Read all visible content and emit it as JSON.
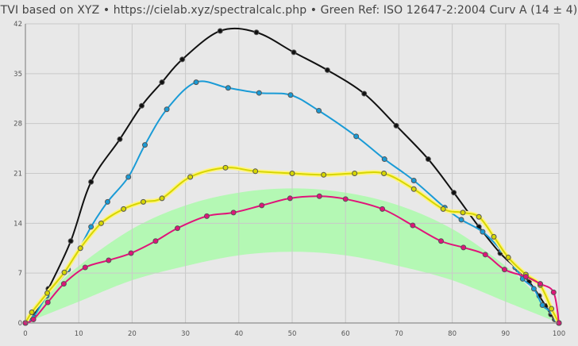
{
  "title": "TVI based on XYZ  •  https://cielab.xyz/spectralcalc.php  •  Green Ref: ISO 12647-2:2004 Curv A (14 ± 4)",
  "chart_data": {
    "type": "line",
    "title": "TVI based on XYZ  •  https://cielab.xyz/spectralcalc.php  •  Green Ref: ISO 12647-2:2004 Curv A (14 ± 4)",
    "xlim": [
      0,
      100
    ],
    "ylim": [
      0,
      42
    ],
    "x_ticks": [
      0,
      10,
      20,
      30,
      40,
      50,
      60,
      70,
      80,
      90,
      100
    ],
    "y_ticks": [
      0,
      7,
      14,
      21,
      28,
      35,
      42
    ],
    "grid": true,
    "reference_band": {
      "color": "#b4f8b4",
      "x": [
        0,
        5,
        10,
        20,
        30,
        40,
        50,
        60,
        70,
        80,
        90,
        95,
        100
      ],
      "upper": [
        0,
        4.5,
        8,
        13.2,
        16.5,
        18.3,
        18.9,
        18.3,
        16.5,
        13.2,
        8,
        4.5,
        0
      ],
      "lower": [
        0,
        1.5,
        3,
        6,
        8,
        9.5,
        10,
        9.5,
        8,
        6,
        3,
        1.5,
        0
      ]
    },
    "series": [
      {
        "color": "#111111",
        "x": [
          0,
          1.5,
          4.3,
          8.5,
          12.3,
          17.7,
          21.8,
          25.6,
          29.4,
          36.5,
          43.3,
          50.3,
          56.6,
          63.5,
          69.5,
          75.5,
          80.3,
          85,
          89,
          92.3,
          94.4,
          96.3,
          97.5,
          98.5,
          99.2,
          100
        ],
        "y": [
          0,
          1,
          4.8,
          11.5,
          19.8,
          25.8,
          30.5,
          33.8,
          37,
          41,
          40.8,
          38,
          35.5,
          32.2,
          27.7,
          23,
          18.3,
          13.5,
          9.8,
          7.5,
          5.8,
          3.8,
          2.4,
          1.2,
          0.5,
          0
        ]
      },
      {
        "color": "#1a9bd6",
        "x": [
          0,
          1.5,
          4,
          8,
          12.3,
          15.4,
          19.3,
          22.4,
          26.5,
          32,
          38,
          43.8,
          49.7,
          55,
          62,
          67.3,
          72.8,
          78.6,
          81.7,
          85.7,
          89.2,
          91.8,
          93.2,
          95.3,
          96.9,
          98.6,
          99.4,
          100
        ],
        "y": [
          0,
          0.8,
          3.8,
          7.5,
          13.5,
          17,
          20.5,
          25,
          30,
          33.8,
          33,
          32.3,
          32,
          29.8,
          26.2,
          23,
          20,
          16.2,
          14.5,
          12.8,
          10.2,
          7.8,
          6.2,
          4.8,
          2.5,
          1.5,
          0.5,
          0
        ]
      },
      {
        "color": "#d6d600",
        "x": [
          0,
          1.2,
          4.1,
          7.3,
          10.3,
          14.2,
          18.4,
          22.1,
          25.6,
          30.9,
          37.5,
          43.1,
          50,
          55.9,
          61.7,
          67.2,
          72.8,
          78.3,
          82,
          85,
          87.8,
          90.5,
          93.8,
          96.5,
          98.6,
          100
        ],
        "y": [
          0,
          1.5,
          4.2,
          7.1,
          10.5,
          14,
          16,
          17,
          17.5,
          20.5,
          21.8,
          21.3,
          21,
          20.8,
          21,
          21,
          18.8,
          16,
          15.5,
          14.9,
          12.1,
          9.2,
          6.8,
          5.3,
          2,
          0
        ]
      },
      {
        "color": "#e0147a",
        "x": [
          0,
          1.5,
          4.2,
          7.2,
          11.2,
          15.6,
          19.8,
          24.4,
          28.5,
          34,
          39,
          44.3,
          49.6,
          55.1,
          60,
          66.9,
          72.6,
          77.9,
          82.1,
          86.2,
          89.8,
          93.8,
          96.5,
          99,
          100
        ],
        "y": [
          0,
          0.5,
          2.9,
          5.5,
          7.8,
          8.8,
          9.8,
          11.5,
          13.3,
          15,
          15.5,
          16.5,
          17.5,
          17.8,
          17.4,
          16,
          13.7,
          11.5,
          10.6,
          9.6,
          7.5,
          6.5,
          5.5,
          4.3,
          0
        ]
      }
    ]
  }
}
